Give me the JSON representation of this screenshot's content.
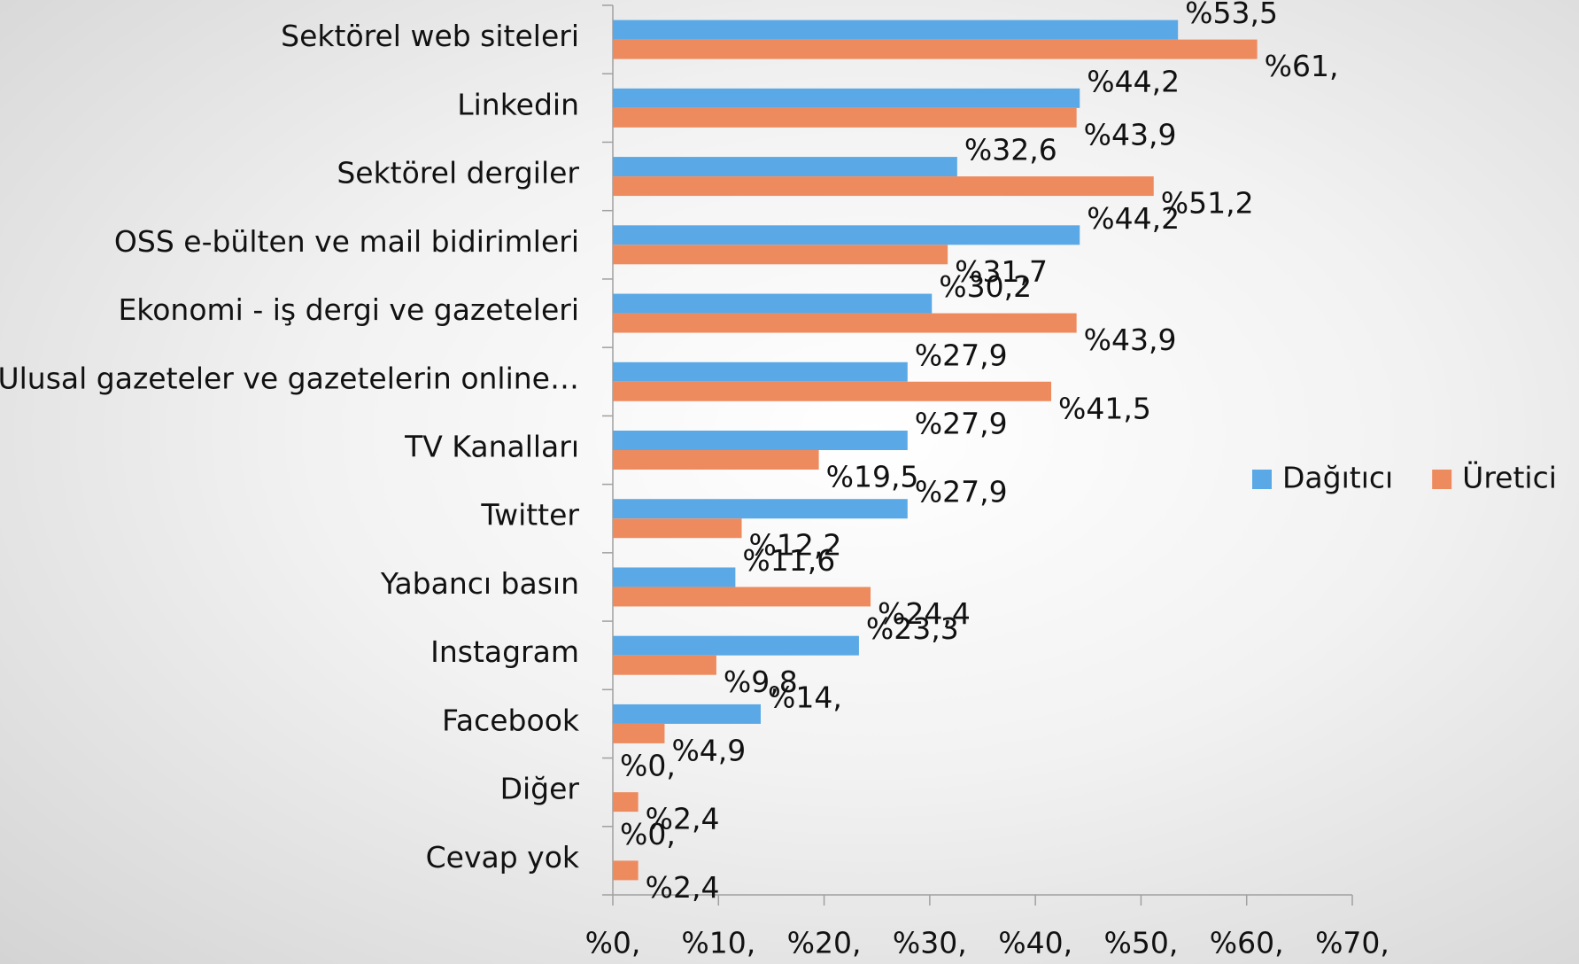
{
  "chart_data": {
    "type": "barh",
    "categories": [
      "Sektörel web siteleri",
      "Linkedin",
      "Sektörel dergiler",
      "OSS e-bülten ve mail bidirimleri",
      "Ekonomi - iş dergi ve gazeteleri",
      "Ulusal gazeteler ve gazetelerin online…",
      "TV Kanalları",
      "Twitter",
      "Yabancı basın",
      "Instagram",
      "Facebook",
      "Diğer",
      "Cevap yok"
    ],
    "series": [
      {
        "name": "Dağıtıcı",
        "color": "#5aa9e6",
        "values": [
          53.5,
          44.2,
          32.6,
          44.2,
          30.2,
          27.9,
          27.9,
          27.9,
          11.6,
          23.3,
          14,
          0,
          0
        ],
        "value_labels": [
          "%53,5",
          "%44,2",
          "%32,6",
          "%44,2",
          "%30,2",
          "%27,9",
          "%27,9",
          "%27,9",
          "%11,6",
          "%23,3",
          "%14,",
          "%0,",
          "%0,"
        ]
      },
      {
        "name": "Üretici",
        "color": "#ed8b5f",
        "values": [
          61,
          43.9,
          51.2,
          31.7,
          43.9,
          41.5,
          19.5,
          12.2,
          24.4,
          9.8,
          4.9,
          2.4,
          2.4
        ],
        "value_labels": [
          "%61,",
          "%43,9",
          "%51,2",
          "%31,7",
          "%43,9",
          "%41,5",
          "%19,5",
          "%12,2",
          "%24,4",
          "%9,8",
          "%4,9",
          "%2,4",
          "%2,4"
        ]
      }
    ],
    "xlim": [
      0,
      70
    ],
    "xticks": [
      {
        "value": 0,
        "label": "%0,"
      },
      {
        "value": 10,
        "label": "%10,"
      },
      {
        "value": 20,
        "label": "%20,"
      },
      {
        "value": 30,
        "label": "%30,"
      },
      {
        "value": 40,
        "label": "%40,"
      },
      {
        "value": 50,
        "label": "%50,"
      },
      {
        "value": 60,
        "label": "%60,"
      },
      {
        "value": 70,
        "label": "%70,"
      }
    ],
    "legend": "right"
  }
}
